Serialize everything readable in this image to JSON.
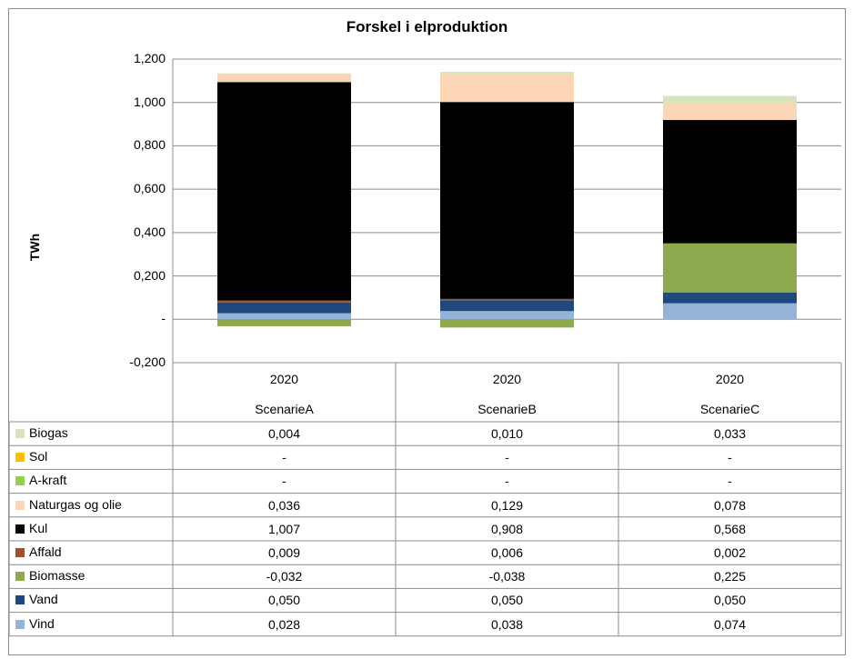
{
  "chart_data": {
    "type": "bar",
    "stacked": true,
    "title": "Forskel i elproduktion",
    "ylabel": "TWh",
    "ylim": [
      -0.2,
      1.2
    ],
    "y_ticks": [
      {
        "value": 1.2,
        "label": "1,200"
      },
      {
        "value": 1.0,
        "label": "1,000"
      },
      {
        "value": 0.8,
        "label": "0,800"
      },
      {
        "value": 0.6,
        "label": "0,600"
      },
      {
        "value": 0.4,
        "label": "0,400"
      },
      {
        "value": 0.2,
        "label": "0,200"
      },
      {
        "value": 0.0,
        "label": "-"
      },
      {
        "value": -0.2,
        "label": "-0,200"
      }
    ],
    "grid": true,
    "legend": "data-table",
    "categories": [
      {
        "year": "2020",
        "scenario": "ScenarieA"
      },
      {
        "year": "2020",
        "scenario": "ScenarieB"
      },
      {
        "year": "2020",
        "scenario": "ScenarieC"
      }
    ],
    "series": [
      {
        "name": "Biogas",
        "color": "#d7e4bd",
        "values": [
          0.004,
          0.01,
          0.033
        ],
        "labels": [
          "0,004",
          "0,010",
          "0,033"
        ]
      },
      {
        "name": "Sol",
        "color": "#ffc000",
        "values": [
          0,
          0,
          0
        ],
        "labels": [
          "-",
          "-",
          "-"
        ]
      },
      {
        "name": "A-kraft",
        "color": "#92d050",
        "values": [
          0,
          0,
          0
        ],
        "labels": [
          "-",
          "-",
          "-"
        ]
      },
      {
        "name": "Naturgas og olie",
        "color": "#fcd5b5",
        "values": [
          0.036,
          0.129,
          0.078
        ],
        "labels": [
          "0,036",
          "0,129",
          "0,078"
        ]
      },
      {
        "name": "Kul",
        "color": "#000000",
        "values": [
          1.007,
          0.908,
          0.568
        ],
        "labels": [
          "1,007",
          "0,908",
          "0,568"
        ]
      },
      {
        "name": "Affald",
        "color": "#a0522d",
        "values": [
          0.009,
          0.006,
          0.002
        ],
        "labels": [
          "0,009",
          "0,006",
          "0,002"
        ]
      },
      {
        "name": "Biomasse",
        "color": "#8faa4e",
        "values": [
          -0.032,
          -0.038,
          0.225
        ],
        "labels": [
          "-0,032",
          "-0,038",
          "0,225"
        ]
      },
      {
        "name": "Vand",
        "color": "#1f497d",
        "values": [
          0.05,
          0.05,
          0.05
        ],
        "labels": [
          "0,050",
          "0,050",
          "0,050"
        ]
      },
      {
        "name": "Vind",
        "color": "#95b3d7",
        "values": [
          0.028,
          0.038,
          0.074
        ],
        "labels": [
          "0,028",
          "0,038",
          "0,074"
        ]
      }
    ]
  }
}
